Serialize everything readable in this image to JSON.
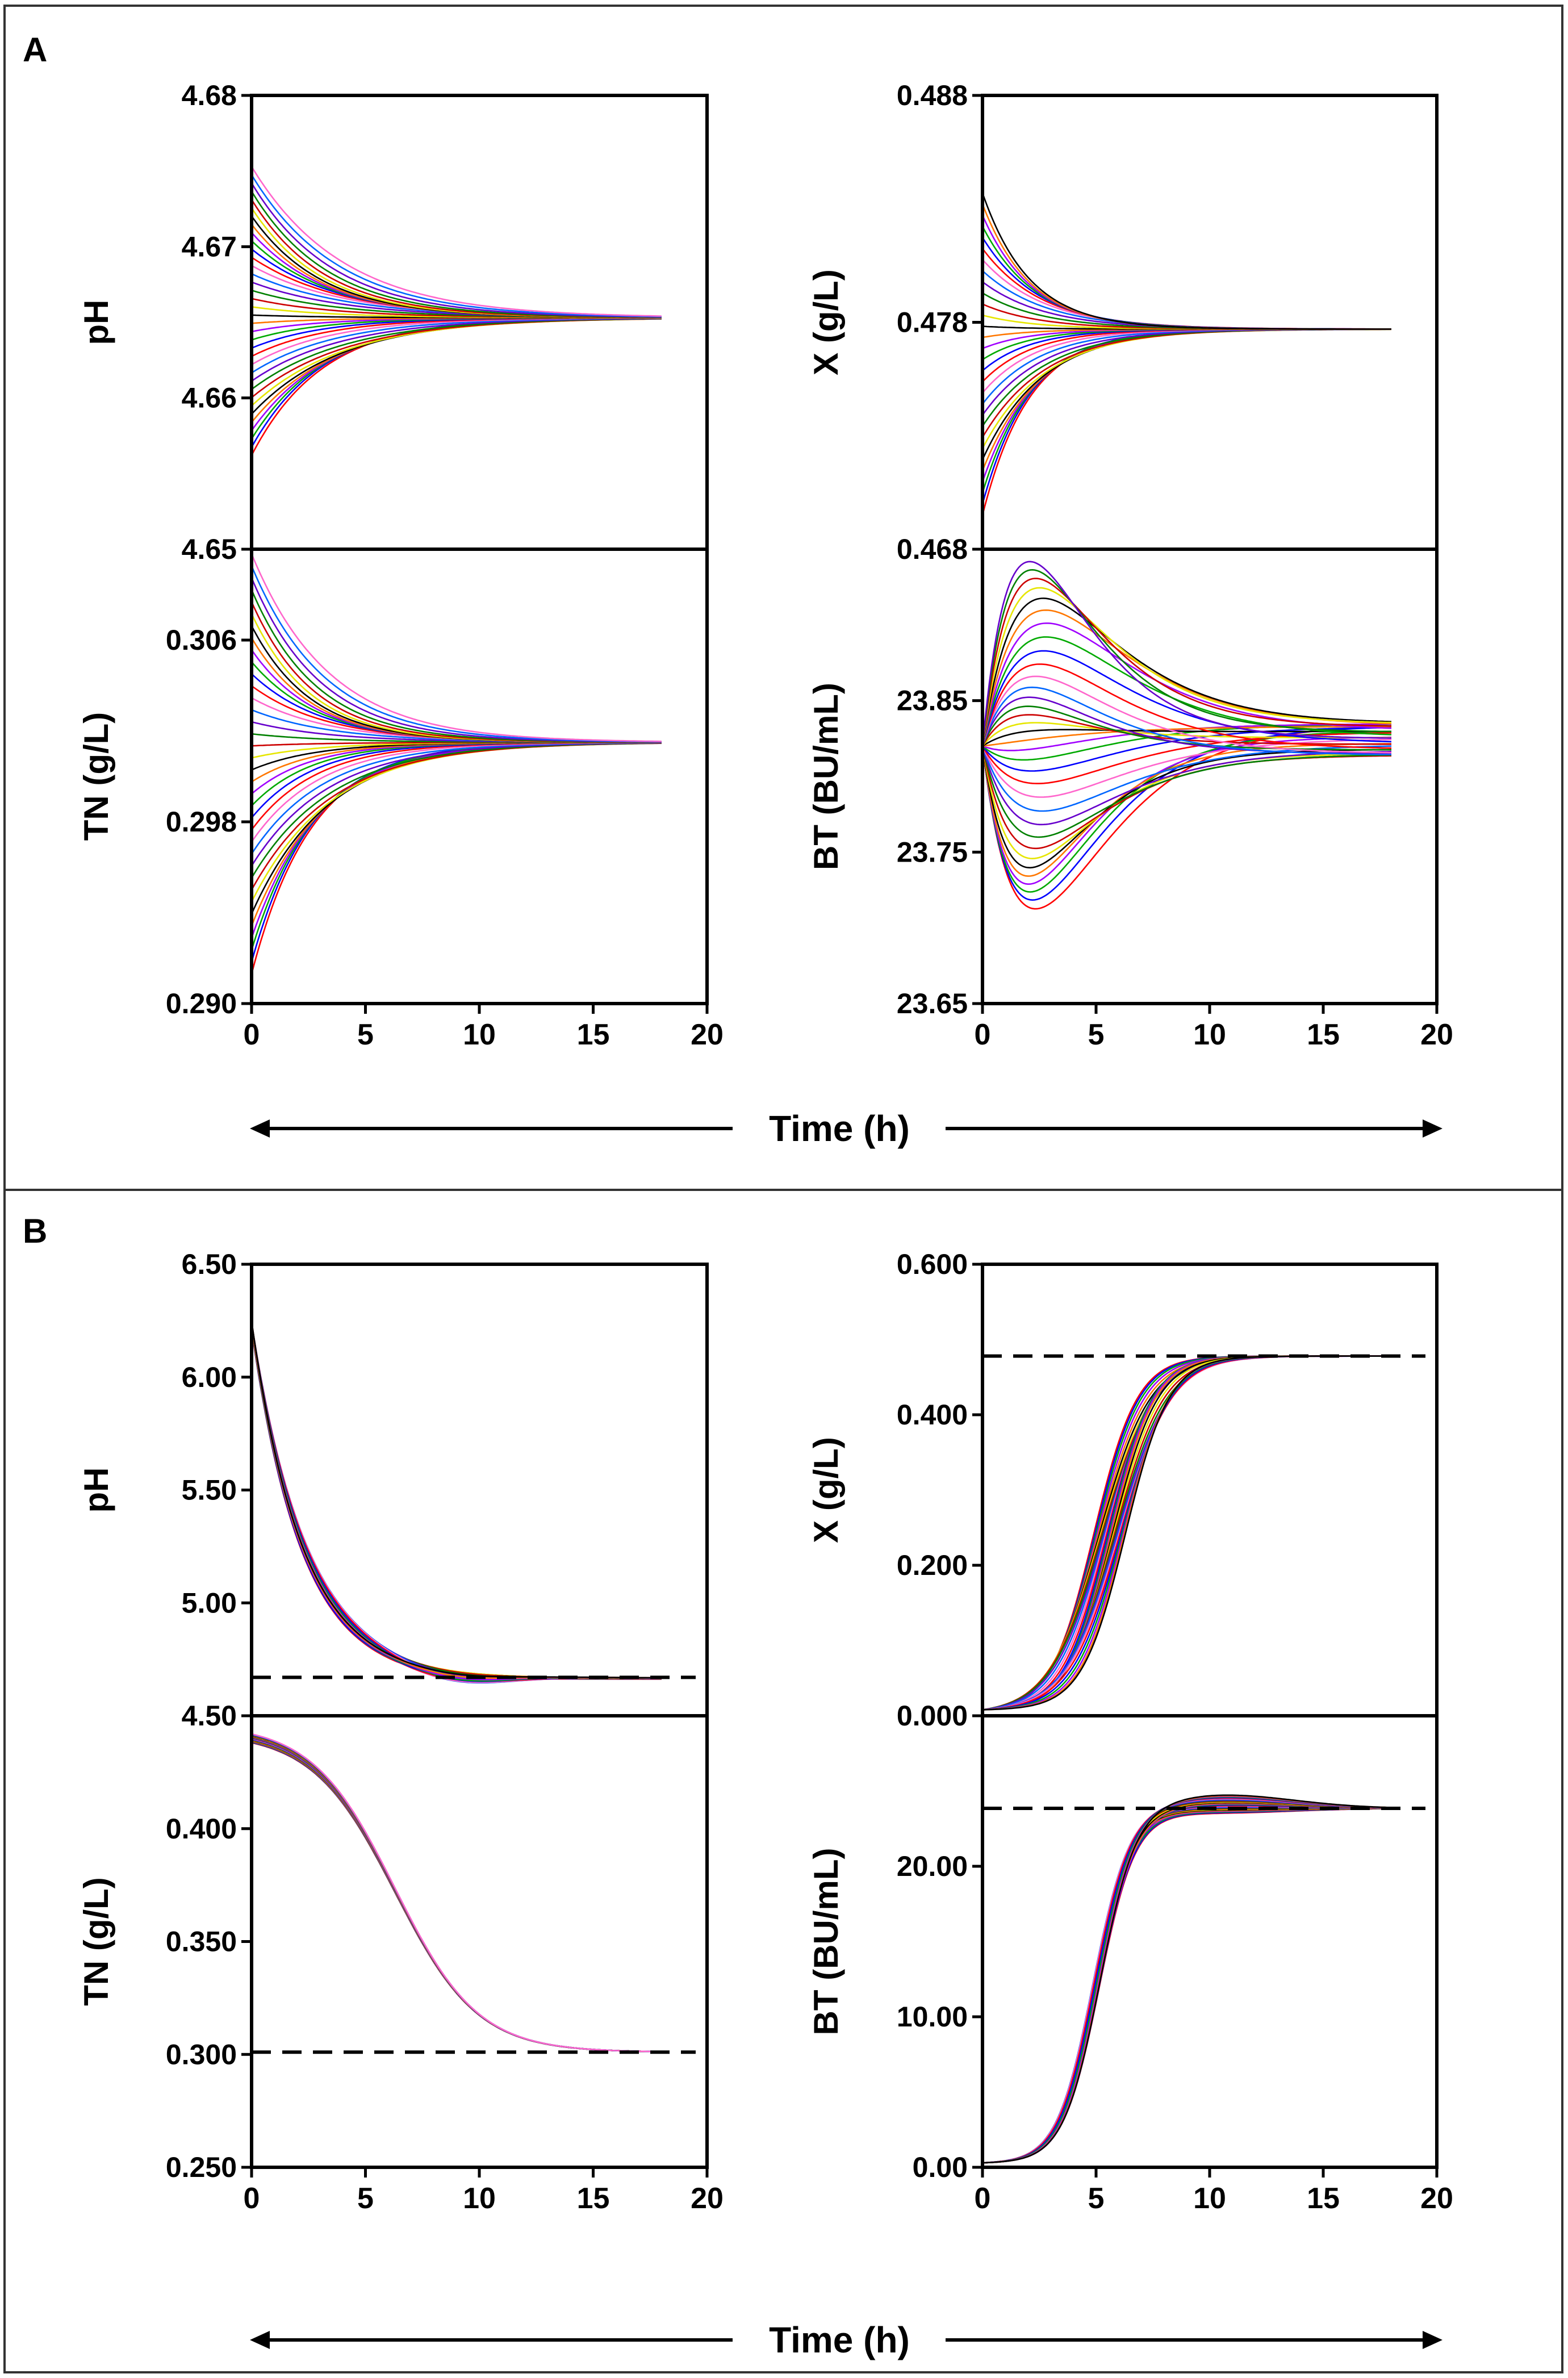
{
  "panels": [
    {
      "label": "A",
      "xlabel": "Time (h)",
      "charts": [
        {
          "type": "line",
          "title": "",
          "ylabel": "pH",
          "ylim": [
            4.65,
            4.68
          ],
          "yticks": [
            4.65,
            4.66,
            4.67,
            4.68
          ],
          "ytick_labels": [
            "4.65",
            "4.66",
            "4.67",
            "4.68"
          ],
          "xlim": [
            0,
            20
          ],
          "xticks": [
            0,
            5,
            10,
            15,
            20
          ],
          "show_xticks": false,
          "curves": {
            "kind": "converge",
            "n": 36,
            "t_end": 18,
            "x0_min": 4.6562,
            "x0_max": 4.6753,
            "final": 4.6653,
            "k": 0.28
          },
          "reference_line": null
        },
        {
          "type": "line",
          "title": "",
          "ylabel": "X (g/L)",
          "ylim": [
            0.468,
            0.488
          ],
          "yticks": [
            0.468,
            0.478,
            0.488
          ],
          "ytick_labels": [
            "0.468",
            "0.478",
            "0.488"
          ],
          "xlim": [
            0,
            20
          ],
          "xticks": [
            0,
            5,
            10,
            15,
            20
          ],
          "show_xticks": false,
          "curves": {
            "kind": "converge",
            "n": 30,
            "t_end": 18,
            "x0_min": 0.4695,
            "x0_max": 0.4837,
            "final": 0.4777,
            "k": 0.42
          },
          "reference_line": null
        },
        {
          "type": "line",
          "title": "",
          "ylabel": "TN (g/L)",
          "ylim": [
            0.29,
            0.31
          ],
          "yticks": [
            0.29,
            0.298,
            0.306
          ],
          "ytick_labels": [
            "0.290",
            "0.298",
            "0.306"
          ],
          "xlim": [
            0,
            20
          ],
          "xticks": [
            0,
            5,
            10,
            15,
            20
          ],
          "show_xticks": true,
          "curves": {
            "kind": "converge",
            "n": 36,
            "t_end": 18,
            "x0_min": 0.2913,
            "x0_max": 0.3098,
            "final": 0.3015,
            "k": 0.33
          },
          "reference_line": null
        },
        {
          "type": "line",
          "title": "",
          "ylabel": "BT (BU/mL)",
          "ylim": [
            23.65,
            23.95
          ],
          "yticks": [
            23.65,
            23.75,
            23.85
          ],
          "ytick_labels": [
            "23.65",
            "23.75",
            "23.85"
          ],
          "xlim": [
            0,
            20
          ],
          "xticks": [
            0,
            5,
            10,
            15,
            20
          ],
          "show_xticks": true,
          "curves": {
            "kind": "hump",
            "n": 34,
            "t_end": 18,
            "start": 23.82,
            "peak_max": 23.945,
            "peak_min": 23.7,
            "final_min": 23.805,
            "final_max": 23.835,
            "t_peak": 2.5
          },
          "reference_line": null
        }
      ]
    },
    {
      "label": "B",
      "xlabel": "Time (h)",
      "charts": [
        {
          "type": "line",
          "title": "",
          "ylabel": "pH",
          "ylim": [
            4.5,
            6.5
          ],
          "yticks": [
            4.5,
            5.0,
            5.5,
            6.0,
            6.5
          ],
          "ytick_labels": [
            "4.50",
            "5.00",
            "5.50",
            "6.00",
            "6.50"
          ],
          "xlim": [
            0,
            20
          ],
          "xticks": [
            0,
            5,
            10,
            15,
            20
          ],
          "show_xticks": false,
          "curves": {
            "kind": "decay",
            "n": 30,
            "t_end": 18,
            "start": 6.23,
            "final": 4.665,
            "spread": 0.035
          },
          "reference_line": 4.67
        },
        {
          "type": "line",
          "title": "",
          "ylabel": "X (g/L)",
          "ylim": [
            0.0,
            0.6
          ],
          "yticks": [
            0.0,
            0.2,
            0.4,
            0.6
          ],
          "ytick_labels": [
            "0.000",
            "0.200",
            "0.400",
            "0.600"
          ],
          "xlim": [
            0,
            20
          ],
          "xticks": [
            0,
            5,
            10,
            15,
            20
          ],
          "show_xticks": false,
          "curves": {
            "kind": "sigmoid",
            "n": 30,
            "t_end": 18,
            "start": 0.008,
            "final": 0.478,
            "t_mid_min": 4.9,
            "t_mid_max": 6.3,
            "slope": 0.95
          },
          "reference_line": 0.478
        },
        {
          "type": "line",
          "title": "",
          "ylabel": "TN (g/L)",
          "ylim": [
            0.25,
            0.45
          ],
          "yticks": [
            0.25,
            0.3,
            0.35,
            0.4
          ],
          "ytick_labels": [
            "0.250",
            "0.300",
            "0.350",
            "0.400"
          ],
          "xlim": [
            0,
            20
          ],
          "xticks": [
            0,
            5,
            10,
            15,
            20
          ],
          "show_xticks": true,
          "curves": {
            "kind": "tn",
            "n": 24,
            "t_end": 18,
            "start": 0.44,
            "final": 0.301,
            "t_mid": 6.3,
            "spread": 0.004
          },
          "reference_line": 0.301
        },
        {
          "type": "line",
          "title": "",
          "ylabel": "BT (BU/mL)",
          "ylim": [
            0.0,
            30.0
          ],
          "yticks": [
            0.0,
            10.0,
            20.0
          ],
          "ytick_labels": [
            "0.00",
            "10.00",
            "20.00"
          ],
          "xlim": [
            0,
            20
          ],
          "xticks": [
            0,
            5,
            10,
            15,
            20
          ],
          "show_xticks": true,
          "curves": {
            "kind": "bt",
            "n": 30,
            "t_end": 18,
            "start": 0.3,
            "final": 23.85,
            "overshoot_max": 1.2,
            "t_mid": 5.0
          },
          "reference_line": 23.85
        }
      ]
    }
  ],
  "colors": {
    "series": [
      "#ff0000",
      "#0000ff",
      "#00aa00",
      "#a000ff",
      "#ff7700",
      "#000000",
      "#e6e600",
      "#cc0000",
      "#008000",
      "#6600cc",
      "#0066ff",
      "#ff66cc"
    ],
    "axis": "#000000",
    "reference": "#000000",
    "border": "#333333"
  }
}
